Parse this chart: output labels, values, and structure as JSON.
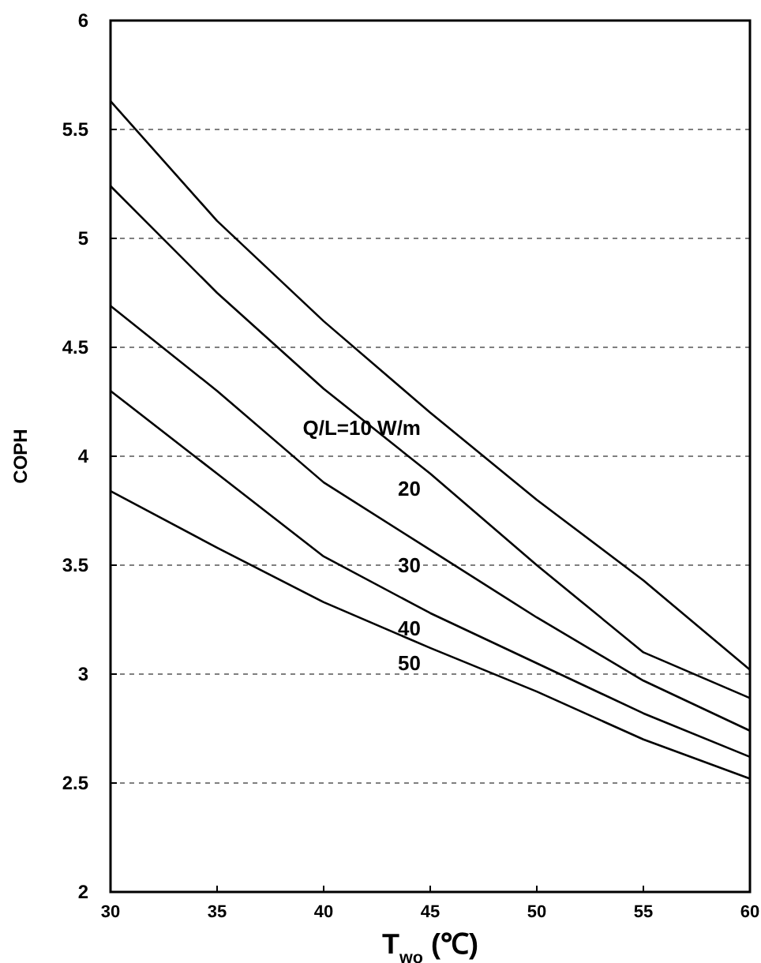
{
  "chart_data": {
    "type": "line",
    "xlabel": "T$_{wo}$ (℃)",
    "ylabel": "COPH",
    "x": [
      30,
      35,
      40,
      45,
      50,
      55,
      60
    ],
    "series": [
      {
        "name": "Q/L=10 W/m",
        "color": "#000000",
        "values": [
          5.63,
          5.08,
          4.62,
          4.2,
          3.8,
          3.43,
          3.02
        ]
      },
      {
        "name": "20",
        "color": "#000000",
        "values": [
          5.24,
          4.75,
          4.31,
          3.92,
          3.5,
          3.1,
          2.89
        ]
      },
      {
        "name": "30",
        "color": "#000000",
        "values": [
          4.69,
          4.3,
          3.88,
          3.57,
          3.26,
          2.97,
          2.74
        ]
      },
      {
        "name": "40",
        "color": "#000000",
        "values": [
          4.3,
          3.92,
          3.54,
          3.28,
          3.05,
          2.82,
          2.62
        ]
      },
      {
        "name": "50",
        "color": "#000000",
        "values": [
          3.84,
          3.58,
          3.33,
          3.12,
          2.92,
          2.7,
          2.52
        ]
      }
    ],
    "xlim": [
      30,
      60
    ],
    "xticks": [
      30,
      35,
      40,
      45,
      50,
      55,
      60
    ],
    "ylim": [
      2,
      6
    ],
    "yticks": [
      2,
      2.5,
      3,
      3.5,
      4,
      4.5,
      5,
      5.5,
      6
    ],
    "grid": "y",
    "marker": "none",
    "line_style": "solid"
  }
}
